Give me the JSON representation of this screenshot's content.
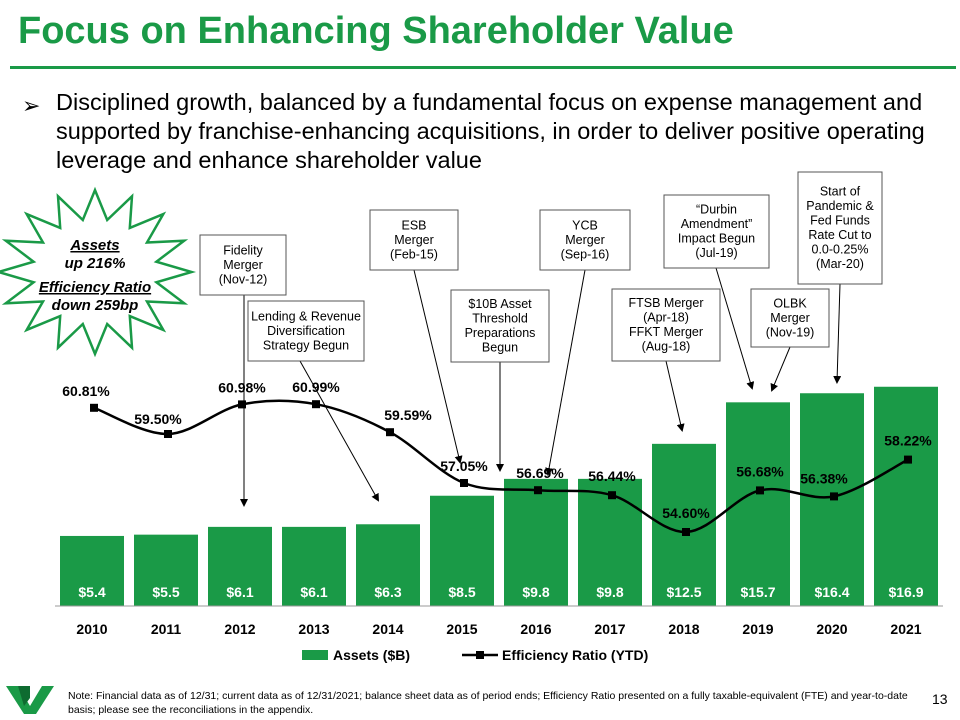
{
  "header": {
    "title": "Focus on Enhancing Shareholder Value"
  },
  "bullet": {
    "marker": "➢",
    "text": "Disciplined growth, balanced by a fundamental focus on expense management and supported by franchise-enhancing acquisitions, in order to deliver positive operating leverage and enhance shareholder value"
  },
  "starburst": {
    "line1": "Assets",
    "line2": "up 216%",
    "line3": "Efficiency Ratio",
    "line4": "down 259bp"
  },
  "colors": {
    "green": "#1a9a47",
    "dark": "#000000"
  },
  "chart_data": {
    "type": "bar+line",
    "categories": [
      "2010",
      "2011",
      "2012",
      "2013",
      "2014",
      "2015",
      "2016",
      "2017",
      "2018",
      "2019",
      "2020",
      "2021"
    ],
    "series": [
      {
        "name": "Assets ($B)",
        "type": "bar",
        "values": [
          5.4,
          5.5,
          6.1,
          6.1,
          6.3,
          8.5,
          9.8,
          9.8,
          12.5,
          15.7,
          16.4,
          16.9
        ],
        "labels": [
          "$5.4",
          "$5.5",
          "$6.1",
          "$6.1",
          "$6.3",
          "$8.5",
          "$9.8",
          "$9.8",
          "$12.5",
          "$15.7",
          "$16.4",
          "$16.9"
        ]
      },
      {
        "name": "Efficiency Ratio (YTD)",
        "type": "line",
        "values": [
          60.81,
          59.5,
          60.98,
          60.99,
          59.59,
          57.05,
          56.69,
          56.44,
          54.6,
          56.68,
          56.38,
          58.22
        ],
        "labels": [
          "60.81%",
          "59.50%",
          "60.98%",
          "60.99%",
          "59.59%",
          "57.05%",
          "56.69%",
          "56.44%",
          "54.60%",
          "56.68%",
          "56.38%",
          "58.22%"
        ]
      }
    ],
    "bar_axis_range": [
      0,
      18.5
    ],
    "line_axis_range": [
      53.3,
      62.3
    ],
    "legend_position": "bottom",
    "annotations": [
      {
        "lines": [
          "Fidelity",
          "Merger",
          "(Nov-12)"
        ],
        "category": "2012"
      },
      {
        "lines": [
          "Lending & Revenue",
          "Diversification",
          "Strategy Begun"
        ],
        "category": "2014"
      },
      {
        "lines": [
          "ESB",
          "Merger",
          "(Feb-15)"
        ],
        "category": "2015"
      },
      {
        "lines": [
          "$10B Asset",
          "Threshold",
          "Preparations",
          "Begun"
        ],
        "category": "2016"
      },
      {
        "lines": [
          "YCB",
          "Merger",
          "(Sep-16)"
        ],
        "category": "2016"
      },
      {
        "lines": [
          "FTSB Merger",
          "(Apr-18)",
          "FFKT Merger",
          "(Aug-18)"
        ],
        "category": "2018"
      },
      {
        "lines": [
          "“Durbin",
          "Amendment”",
          "Impact Begun",
          "(Jul-19)"
        ],
        "category": "2019"
      },
      {
        "lines": [
          "OLBK",
          "Merger",
          "(Nov-19)"
        ],
        "category": "2019"
      },
      {
        "lines": [
          "Start of",
          "Pandemic &",
          "Fed Funds",
          "Rate Cut to",
          "0.0-0.25%",
          "(Mar-20)"
        ],
        "category": "2020"
      }
    ]
  },
  "footer": {
    "note": "Note: Financial data as of 12/31; current data as of 12/31/2021; balance sheet data as of period ends; Efficiency Ratio presented on a fully taxable-equivalent (FTE) and year-to-date basis; please see the reconciliations in the appendix.",
    "page": "13"
  }
}
